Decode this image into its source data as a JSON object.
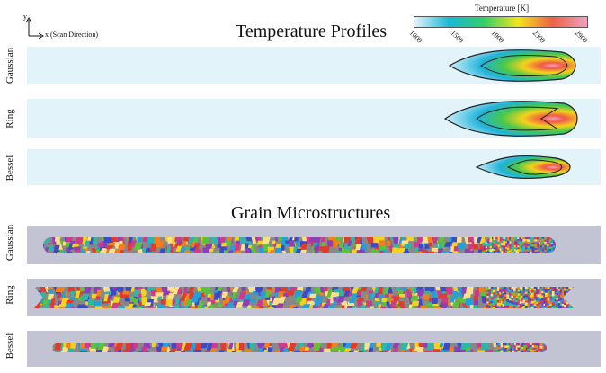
{
  "axis_indicator": {
    "y_label": "y",
    "x_label": "x (Scan Direction)"
  },
  "sections": {
    "temperature": {
      "title": "Temperature Profiles"
    },
    "grain": {
      "title": "Grain Microstructures"
    }
  },
  "colorbar": {
    "label": "Temperature [K]",
    "min": 1000,
    "max": 2900,
    "ticks": [
      "1000",
      "1500",
      "1900",
      "2300",
      "2900"
    ],
    "colors": [
      "#e2f3fa",
      "#19b8d8",
      "#2fd06a",
      "#f3e51a",
      "#f06045",
      "#f0a0c0"
    ]
  },
  "rows": {
    "temperature": [
      {
        "label": "Gaussian",
        "beam": "gaussian"
      },
      {
        "label": "Ring",
        "beam": "ring"
      },
      {
        "label": "Bessel",
        "beam": "bessel"
      }
    ],
    "grain": [
      {
        "label": "Gaussian"
      },
      {
        "label": "Ring"
      },
      {
        "label": "Bessel"
      }
    ]
  },
  "grain_palette": [
    "#e23b2e",
    "#f07f1c",
    "#f3d31c",
    "#5cc23a",
    "#22a0d9",
    "#3b4bc8",
    "#8e3fb8",
    "#d03a8a",
    "#2fb7a6",
    "#ffe08a"
  ]
}
